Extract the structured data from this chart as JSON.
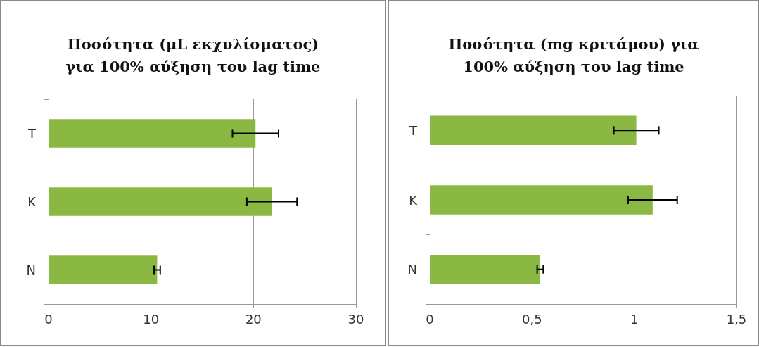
{
  "chart_data": [
    {
      "type": "bar",
      "orientation": "horizontal",
      "title": "Ποσότητα (μL εκχυλίσματος)\nγια 100% αύξηση του lag time",
      "categories": [
        "T",
        "K",
        "N"
      ],
      "series": [
        {
          "color": "#8bb843",
          "values": [
            20.2,
            21.8,
            10.6
          ],
          "errors": [
            2.25,
            2.45,
            0.3
          ]
        }
      ],
      "xlim": [
        0,
        30
      ],
      "xticks": [
        0,
        10,
        20,
        30
      ],
      "grid": "x"
    },
    {
      "type": "bar",
      "orientation": "horizontal",
      "title": "Ποσότητα (mg κριτάμου) για\n100% αύξηση του lag time",
      "categories": [
        "T",
        "K",
        "N"
      ],
      "series": [
        {
          "color": "#8bb843",
          "values": [
            1.01,
            1.09,
            0.54
          ],
          "errors": [
            0.11,
            0.12,
            0.015
          ]
        }
      ],
      "xlim": [
        0,
        1.5
      ],
      "xticks": [
        0,
        {
          "value": 0.5,
          "label": "0,5"
        },
        1,
        {
          "value": 1.5,
          "label": "1,5"
        }
      ],
      "grid": "x"
    }
  ]
}
